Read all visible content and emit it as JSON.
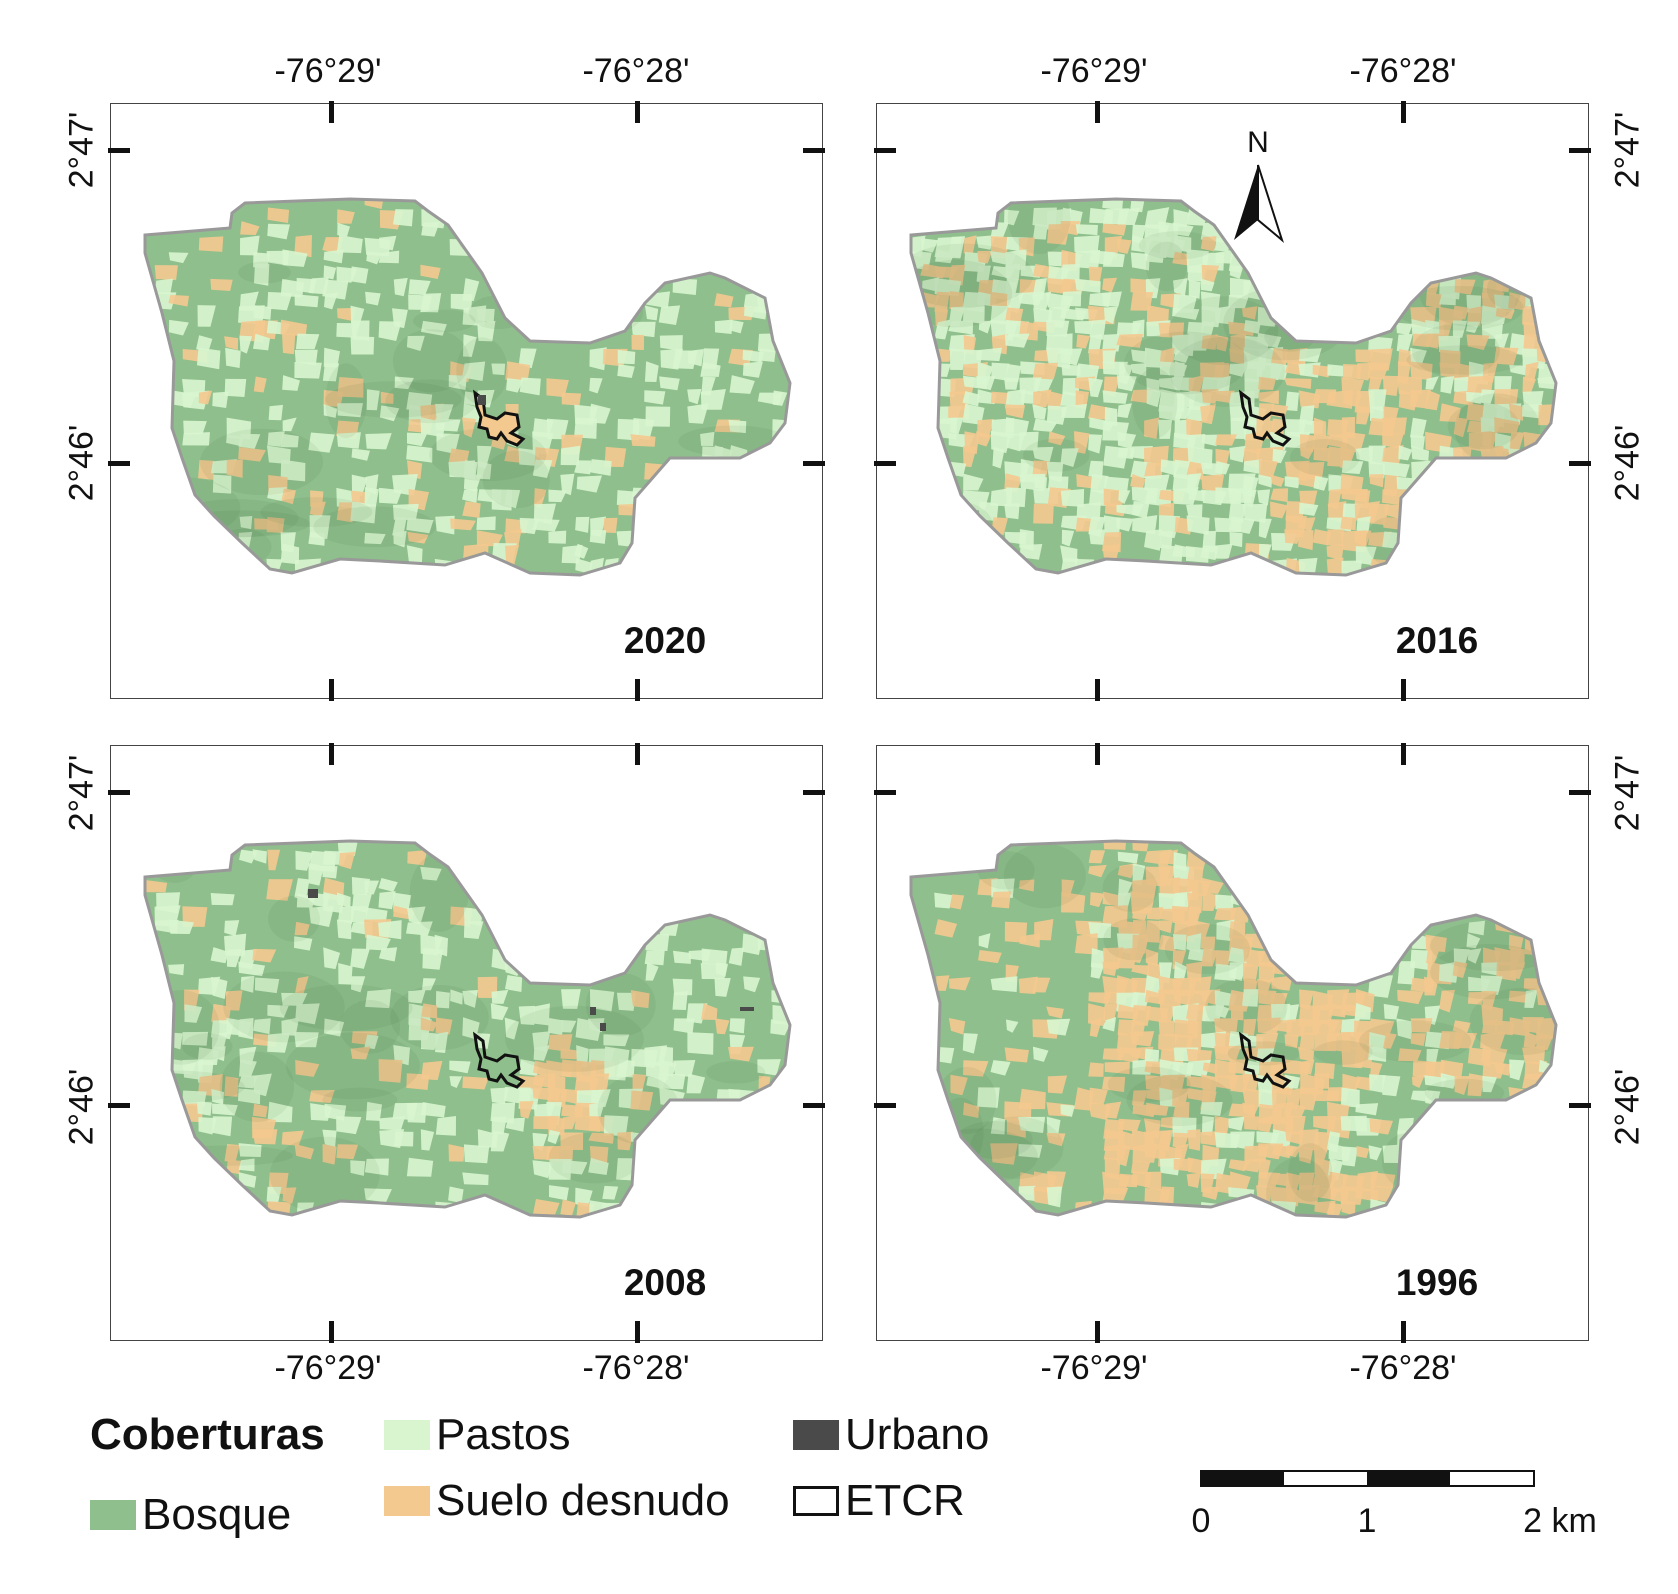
{
  "panels": [
    {
      "year": "2020",
      "dominant": "forest"
    },
    {
      "year": "2016",
      "dominant": "pasture"
    },
    {
      "year": "2008",
      "dominant": "forest"
    },
    {
      "year": "1996",
      "dominant": "bare"
    }
  ],
  "axes": {
    "lon_labels": [
      "-76°29'",
      "-76°28'"
    ],
    "lat_labels": [
      "2°47'",
      "2°46'"
    ]
  },
  "north_arrow": {
    "label": "N"
  },
  "legend": {
    "title": "Coberturas",
    "items": [
      {
        "label": "Bosque",
        "color": "#8fbf8c"
      },
      {
        "label": "Pastos",
        "color": "#d8f5cf"
      },
      {
        "label": "Suelo desnudo",
        "color": "#f3c98f"
      },
      {
        "label": "Urbano",
        "color": "#4a4a4a"
      },
      {
        "label": "ETCR",
        "color": "#ffffff"
      }
    ]
  },
  "scale_bar": {
    "labels": [
      "0",
      "1",
      "2 km"
    ]
  },
  "colors": {
    "forest": "#8fbf8c",
    "pasture": "#d8f5cf",
    "bare": "#f3c98f",
    "urban": "#4a4a4a",
    "outline": "#999999"
  }
}
